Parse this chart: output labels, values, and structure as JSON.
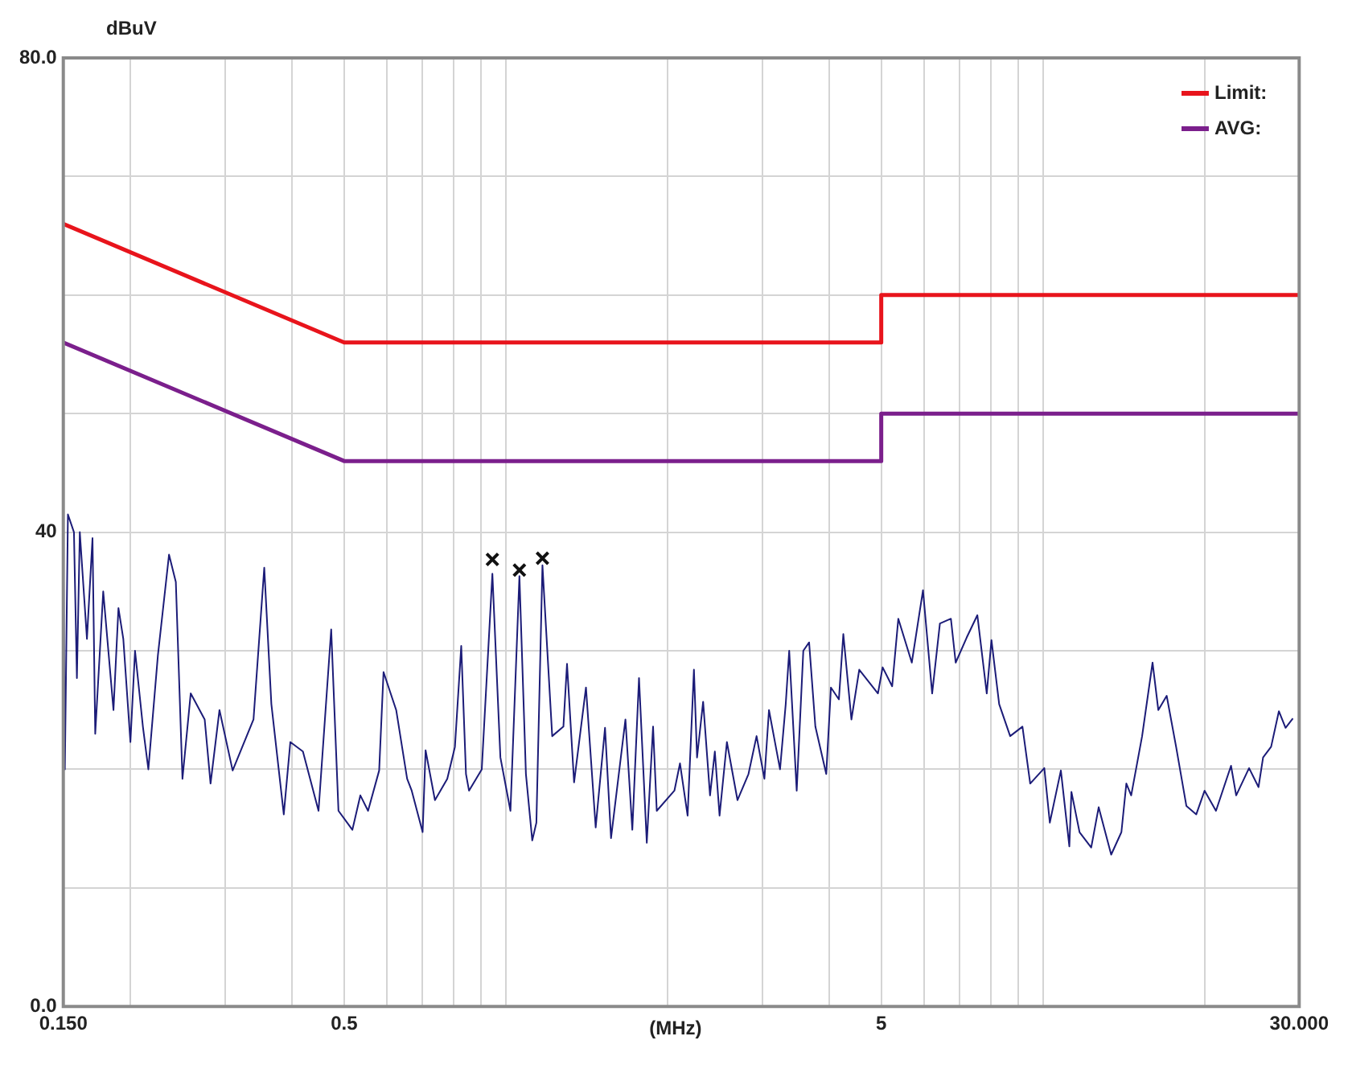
{
  "chart_data": {
    "type": "line",
    "xlabel": "(MHz)",
    "ylabel": "dBuV",
    "log": "x",
    "grid": true,
    "legend": "top right",
    "marker": "none",
    "line_style": "solid",
    "xlim": [
      0.15,
      30
    ],
    "ylim": [
      0,
      80
    ],
    "xticks": [
      {
        "value": 0.15,
        "label": "0.150"
      },
      {
        "value": 0.2,
        "label": null
      },
      {
        "value": 0.3,
        "label": null
      },
      {
        "value": 0.4,
        "label": null
      },
      {
        "value": 0.5,
        "label": "0.5"
      },
      {
        "value": 0.6,
        "label": null
      },
      {
        "value": 0.7,
        "label": null
      },
      {
        "value": 0.8,
        "label": null
      },
      {
        "value": 0.9,
        "label": null
      },
      {
        "value": 1,
        "label": null
      },
      {
        "value": 2,
        "label": null
      },
      {
        "value": 3,
        "label": null
      },
      {
        "value": 4,
        "label": null
      },
      5,
      {
        "value": 6,
        "label": null
      },
      {
        "value": 7,
        "label": null
      },
      {
        "value": 8,
        "label": null
      },
      {
        "value": 9,
        "label": null
      },
      {
        "value": 10,
        "label": null
      },
      {
        "value": 20,
        "label": null
      },
      {
        "value": 30,
        "label": "30.000"
      }
    ],
    "yticks": [
      {
        "value": 0,
        "label": "0.0"
      },
      {
        "value": 10,
        "label": null
      },
      {
        "value": 20,
        "label": null
      },
      {
        "value": 30,
        "label": null
      },
      40,
      {
        "value": 50,
        "label": null
      },
      {
        "value": 60,
        "label": null
      },
      {
        "value": 70,
        "label": null
      },
      {
        "value": 80,
        "label": "80.0"
      }
    ],
    "series": [
      {
        "name": "Limit:",
        "color": "#e8141c",
        "x": [
          0.15,
          0.5,
          5,
          5,
          30
        ],
        "values": [
          66,
          56,
          56,
          60,
          60
        ]
      },
      {
        "name": "AVG:",
        "color": "#7b1f8c",
        "x": [
          0.15,
          0.5,
          5,
          5,
          30
        ],
        "values": [
          56,
          46,
          46,
          50,
          50
        ]
      },
      {
        "color": "#1c1c78",
        "x": [
          0.15,
          0.151,
          0.153,
          0.157,
          0.159,
          0.161,
          0.166,
          0.17,
          0.172,
          0.178,
          0.186,
          0.19,
          0.194,
          0.2,
          0.204,
          0.211,
          0.216,
          0.225,
          0.236,
          0.243,
          0.25,
          0.259,
          0.275,
          0.282,
          0.293,
          0.31,
          0.339,
          0.355,
          0.366,
          0.386,
          0.397,
          0.419,
          0.448,
          0.473,
          0.488,
          0.518,
          0.536,
          0.554,
          0.581,
          0.592,
          0.625,
          0.655,
          0.668,
          0.7,
          0.709,
          0.738,
          0.778,
          0.804,
          0.826,
          0.843,
          0.854,
          0.902,
          0.944,
          0.977,
          1.02,
          1.06,
          1.09,
          1.12,
          1.14,
          1.17,
          1.22,
          1.28,
          1.3,
          1.34,
          1.41,
          1.47,
          1.53,
          1.57,
          1.67,
          1.72,
          1.77,
          1.83,
          1.88,
          1.91,
          2.06,
          2.11,
          2.18,
          2.24,
          2.27,
          2.33,
          2.4,
          2.45,
          2.5,
          2.58,
          2.7,
          2.83,
          2.93,
          3.03,
          3.09,
          3.24,
          3.32,
          3.37,
          3.48,
          3.58,
          3.67,
          3.77,
          3.95,
          4.03,
          4.17,
          4.25,
          4.4,
          4.55,
          4.93,
          5.03,
          5.24,
          5.38,
          5.7,
          5.98,
          6.22,
          6.43,
          6.74,
          6.88,
          7.21,
          7.55,
          7.86,
          8.02,
          8.29,
          8.69,
          9.16,
          9.47,
          10.06,
          10.3,
          10.8,
          11.2,
          11.3,
          11.7,
          12.3,
          12.7,
          13.4,
          14,
          14.3,
          14.6,
          15.3,
          16,
          16.4,
          17,
          17.7,
          18.5,
          19.3,
          20,
          21,
          22.4,
          22.9,
          24.2,
          25.2,
          25.7,
          26.6,
          27.5,
          28.3,
          29.2
        ],
        "values": [
          39,
          20,
          41.5,
          40,
          27.7,
          40,
          31,
          39.5,
          23,
          35,
          25,
          33.6,
          31,
          22.3,
          30,
          23.6,
          20,
          29.6,
          38.1,
          35.8,
          19.2,
          26.4,
          24.2,
          18.8,
          25,
          19.9,
          24.2,
          37,
          25.5,
          16.2,
          22.3,
          21.5,
          16.5,
          31.8,
          16.5,
          14.9,
          17.8,
          16.5,
          19.9,
          28.2,
          25,
          19.2,
          18.2,
          14.7,
          21.6,
          17.4,
          19.2,
          21.9,
          30.4,
          19.6,
          18.2,
          20,
          36.5,
          21,
          16.5,
          36.3,
          19.6,
          14,
          15.5,
          37.2,
          22.8,
          23.6,
          28.9,
          18.9,
          26.9,
          15.1,
          23.5,
          14.2,
          24.2,
          14.9,
          27.7,
          13.8,
          23.6,
          16.5,
          18.2,
          20.5,
          16.1,
          28.4,
          21,
          25.7,
          17.8,
          21.5,
          16.1,
          22.3,
          17.4,
          19.6,
          22.8,
          19.2,
          25,
          20,
          25.5,
          30,
          18.2,
          30,
          30.7,
          23.6,
          19.6,
          26.9,
          25.9,
          31.4,
          24.2,
          28.4,
          26.4,
          28.6,
          27,
          32.7,
          29,
          35.1,
          26.4,
          32.3,
          32.7,
          29,
          31.1,
          33,
          26.4,
          30.9,
          25.5,
          22.8,
          23.6,
          18.8,
          20.1,
          15.5,
          19.9,
          13.5,
          18.1,
          14.7,
          13.4,
          16.8,
          12.8,
          14.7,
          18.8,
          17.8,
          22.8,
          29,
          25,
          26.2,
          21.9,
          16.9,
          16.2,
          18.2,
          16.5,
          20.3,
          17.8,
          20.1,
          18.5,
          21,
          21.9,
          24.9,
          23.5,
          24.3
        ]
      },
      {
        "type": "scatter",
        "marker": "cross",
        "color": "#111111",
        "x": [
          0.944,
          1.06,
          1.17
        ],
        "values": [
          37.7,
          36.8,
          37.8
        ]
      }
    ]
  }
}
